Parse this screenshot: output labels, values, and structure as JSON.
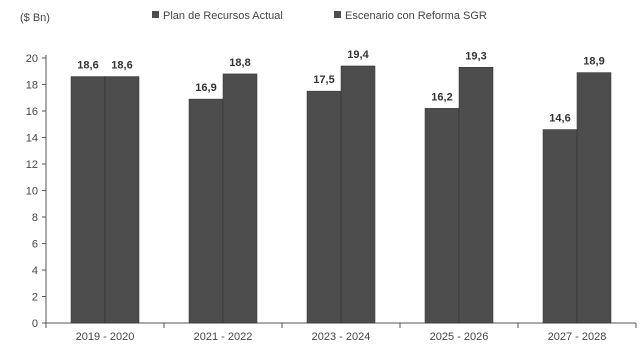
{
  "chart_data": {
    "type": "bar",
    "unit_label": "($ Bn)",
    "categories": [
      "2019 - 2020",
      "2021 - 2022",
      "2023 - 2024",
      "2025 - 2026",
      "2027 - 2028"
    ],
    "series": [
      {
        "name": "Plan de Recursos Actual",
        "values": [
          18.6,
          16.9,
          17.5,
          16.2,
          14.6
        ],
        "labels": [
          "18,6",
          "16,9",
          "17,5",
          "16,2",
          "14,6"
        ]
      },
      {
        "name": "Escenario con Reforma SGR",
        "values": [
          18.6,
          18.8,
          19.4,
          19.3,
          18.9
        ],
        "labels": [
          "18,6",
          "18,8",
          "19,4",
          "19,3",
          "18,9"
        ]
      }
    ],
    "ylim": [
      0,
      20
    ],
    "yticks": [
      0,
      2,
      4,
      6,
      8,
      10,
      12,
      14,
      16,
      18,
      20
    ],
    "grid": false,
    "legend_position": "top",
    "colors": {
      "bar": "#4d4d4d",
      "bar_edge": "#2e2e2e",
      "axis": "#555555"
    }
  }
}
